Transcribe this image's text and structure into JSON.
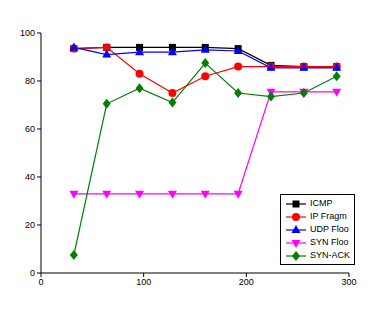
{
  "chart_data": {
    "type": "line",
    "x": [
      32,
      64,
      96,
      128,
      160,
      192,
      224,
      256,
      288
    ],
    "xlim": [
      0,
      300
    ],
    "xticks": [
      0,
      100,
      200,
      300
    ],
    "ylim": [
      0,
      100
    ],
    "yticks": [
      0,
      20,
      40,
      60,
      80,
      100
    ],
    "grid": false,
    "legend": "lower right",
    "series": [
      {
        "name": "ICMP",
        "color": "#000000",
        "marker": "square",
        "values": [
          93.5,
          94,
          94,
          94,
          94,
          93.5,
          86.5,
          86,
          86
        ]
      },
      {
        "name": "IP Fragm",
        "color": "#ff0000",
        "marker": "circle",
        "values": [
          93.5,
          94,
          83,
          75,
          82,
          86,
          86,
          86,
          86
        ]
      },
      {
        "name": "UDP Floo",
        "color": "#0000ff",
        "marker": "triangle",
        "values": [
          94,
          91,
          92,
          92,
          93,
          92.5,
          85.5,
          85.5,
          85.5
        ]
      },
      {
        "name": "SYN Floo",
        "color": "#ff00ff",
        "marker": "triangle-down",
        "values": [
          33,
          33,
          33,
          33,
          33,
          33,
          75.5,
          75.5,
          75.5
        ]
      },
      {
        "name": "SYN-ACK",
        "color": "#008000",
        "marker": "diamond",
        "values": [
          7.5,
          70.5,
          77,
          71,
          87.5,
          75,
          73.5,
          75,
          82
        ]
      }
    ]
  }
}
